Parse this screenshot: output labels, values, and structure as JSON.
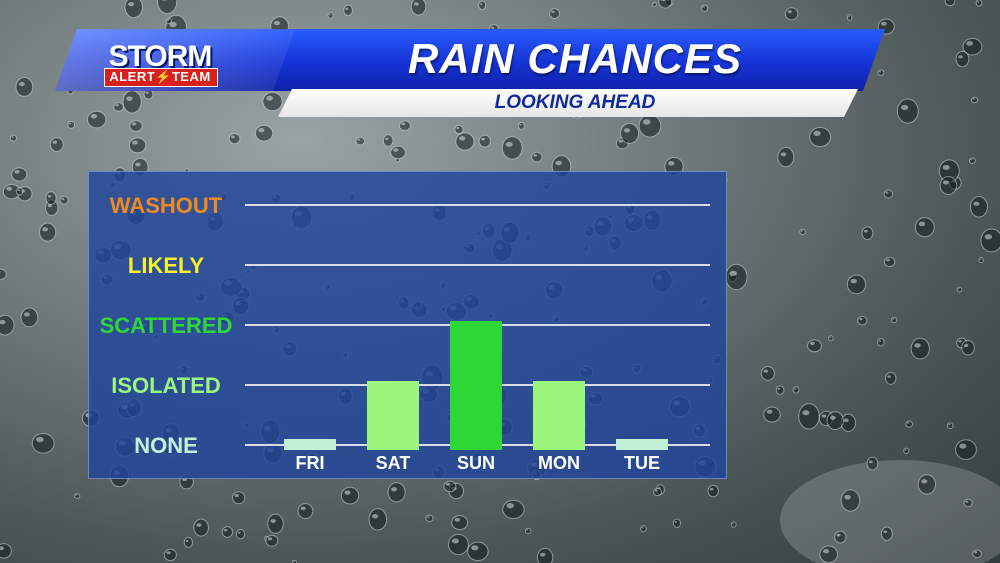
{
  "header": {
    "title": "RAIN CHANCES",
    "subtitle": "LOOKING AHEAD"
  },
  "logo": {
    "top": "STORM",
    "bottom": "ALERT⚡TEAM"
  },
  "colors": {
    "header_blue": "#1533d6",
    "panel_blue": "#20469b",
    "washout": "#f08a1e",
    "likely": "#f5f02a",
    "scattered": "#2ed636",
    "isolated": "#9cf57c",
    "none": "#bff0d8"
  },
  "chart_data": {
    "type": "bar",
    "categories": [
      "FRI",
      "SAT",
      "SUN",
      "MON",
      "TUE"
    ],
    "levels": [
      "NONE",
      "ISOLATED",
      "SCATTERED",
      "LIKELY",
      "WASHOUT"
    ],
    "level_colors": [
      "#bff0d8",
      "#9cf57c",
      "#2ed636",
      "#f5f02a",
      "#f08a1e"
    ],
    "values": [
      0,
      1,
      2,
      1,
      0
    ],
    "ylim": [
      0,
      4
    ],
    "grid": true
  }
}
